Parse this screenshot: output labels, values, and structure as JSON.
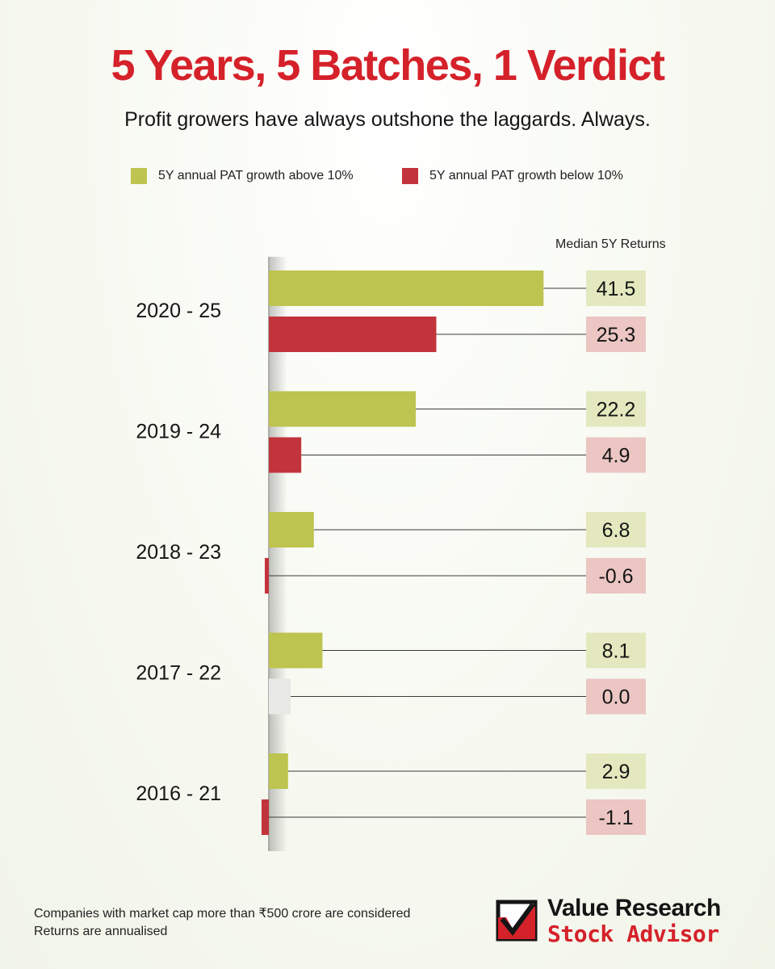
{
  "title": "5 Years, 5 Batches, 1 Verdict",
  "subtitle": "Profit growers have always outshone the laggards. Always.",
  "legend": {
    "above": "5Y annual PAT growth above 10%",
    "below": "5Y annual PAT growth below 10%"
  },
  "returns_header": "Median 5Y Returns",
  "colors": {
    "title": "#d5212a",
    "above_bar": "#bdc44f",
    "below_bar": "#c2343b",
    "above_box": "#e3e8be",
    "below_box": "#ebc6c3",
    "zero_bar": "#e8e9e6"
  },
  "chart_data": {
    "type": "bar",
    "orientation": "horizontal",
    "categories": [
      "2020 - 25",
      "2019 - 24",
      "2018 - 23",
      "2017 - 22",
      "2016 - 21"
    ],
    "series": [
      {
        "name": "5Y annual PAT growth above 10%",
        "values": [
          41.5,
          22.2,
          6.8,
          8.1,
          2.9
        ],
        "labels": [
          "41.5",
          "22.2",
          "6.8",
          "8.1",
          "2.9"
        ]
      },
      {
        "name": "5Y annual PAT growth below 10%",
        "values": [
          25.3,
          4.9,
          -0.6,
          0.0,
          -1.1
        ],
        "labels": [
          "25.3",
          "4.9",
          "-0.6",
          "0.0",
          "-1.1"
        ]
      }
    ],
    "value_label_header": "Median 5Y Returns",
    "xlim": [
      -1.1,
      41.5
    ],
    "grid": false,
    "legend_position": "top"
  },
  "footnotes": [
    "Companies with market cap more than ₹500 crore are considered",
    "Returns are annualised"
  ],
  "brand": {
    "line1": "Value Research",
    "line2": "Stock Advisor",
    "mark_icon": "checkmark-box-icon"
  }
}
